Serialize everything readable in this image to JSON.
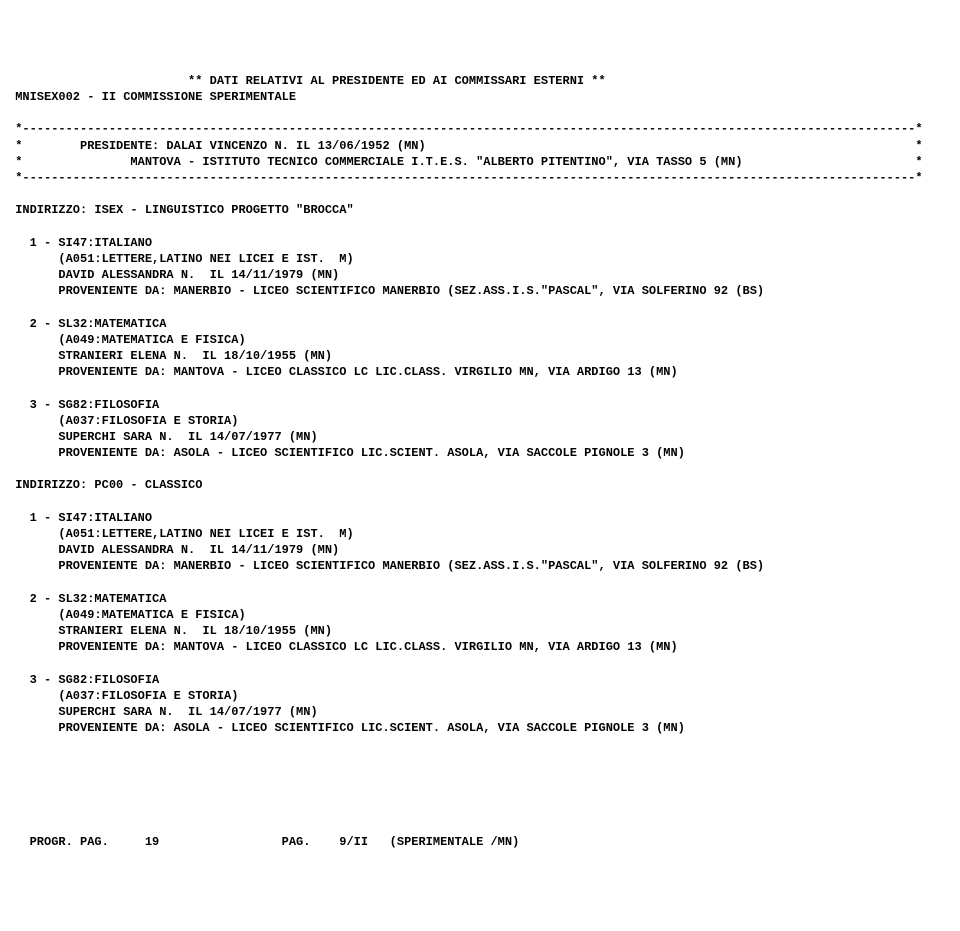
{
  "header": {
    "title_line": "                         ** DATI RELATIVI AL PRESIDENTE ED AI COMMISSARI ESTERNI **",
    "subtitle_line": " MNISEX002 - II COMMISSIONE SPERIMENTALE"
  },
  "box": {
    "rule": " *----------------------------------------------------------------------------------------------------------------------------*",
    "president_line": " *        PRESIDENTE: DALAI VINCENZO N. IL 13/06/1952 (MN)                                                                    *",
    "school_line": " *               MANTOVA - ISTITUTO TECNICO COMMERCIALE I.T.E.S. \"ALBERTO PITENTINO\", VIA TASSO 5 (MN)                        *"
  },
  "addr1": {
    "line": " INDIRIZZO: ISEX - LINGUISTICO PROGETTO \"BROCCA\""
  },
  "sec1": {
    "m1": {
      "head": "   1 - SI47:ITALIANO",
      "paren": "       (A051:LETTERE,LATINO NEI LICEI E IST.  M)",
      "name": "       DAVID ALESSANDRA N.  IL 14/11/1979 (MN)",
      "prov": "       PROVENIENTE DA: MANERBIO - LICEO SCIENTIFICO MANERBIO (SEZ.ASS.I.S.\"PASCAL\", VIA SOLFERINO 92 (BS)"
    },
    "m2": {
      "head": "   2 - SL32:MATEMATICA",
      "paren": "       (A049:MATEMATICA E FISICA)",
      "name": "       STRANIERI ELENA N.  IL 18/10/1955 (MN)",
      "prov": "       PROVENIENTE DA: MANTOVA - LICEO CLASSICO LC LIC.CLASS. VIRGILIO MN, VIA ARDIGO 13 (MN)"
    },
    "m3": {
      "head": "   3 - SG82:FILOSOFIA",
      "paren": "       (A037:FILOSOFIA E STORIA)",
      "name": "       SUPERCHI SARA N.  IL 14/07/1977 (MN)",
      "prov": "       PROVENIENTE DA: ASOLA - LICEO SCIENTIFICO LIC.SCIENT. ASOLA, VIA SACCOLE PIGNOLE 3 (MN)"
    }
  },
  "addr2": {
    "line": " INDIRIZZO: PC00 - CLASSICO"
  },
  "sec2": {
    "m1": {
      "head": "   1 - SI47:ITALIANO",
      "paren": "       (A051:LETTERE,LATINO NEI LICEI E IST.  M)",
      "name": "       DAVID ALESSANDRA N.  IL 14/11/1979 (MN)",
      "prov": "       PROVENIENTE DA: MANERBIO - LICEO SCIENTIFICO MANERBIO (SEZ.ASS.I.S.\"PASCAL\", VIA SOLFERINO 92 (BS)"
    },
    "m2": {
      "head": "   2 - SL32:MATEMATICA",
      "paren": "       (A049:MATEMATICA E FISICA)",
      "name": "       STRANIERI ELENA N.  IL 18/10/1955 (MN)",
      "prov": "       PROVENIENTE DA: MANTOVA - LICEO CLASSICO LC LIC.CLASS. VIRGILIO MN, VIA ARDIGO 13 (MN)"
    },
    "m3": {
      "head": "   3 - SG82:FILOSOFIA",
      "paren": "       (A037:FILOSOFIA E STORIA)",
      "name": "       SUPERCHI SARA N.  IL 14/07/1977 (MN)",
      "prov": "       PROVENIENTE DA: ASOLA - LICEO SCIENTIFICO LIC.SCIENT. ASOLA, VIA SACCOLE PIGNOLE 3 (MN)"
    }
  },
  "footer": {
    "line": "   PROGR. PAG.     19                 PAG.    9/II   (SPERIMENTALE /MN)"
  }
}
